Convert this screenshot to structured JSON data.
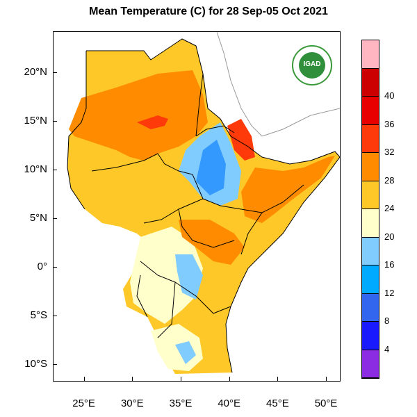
{
  "title": "Mean Temperature (C) for 28 Sep-05 Oct 2021",
  "logo": {
    "text": "IGAD",
    "icon": "igad-logo-icon"
  },
  "map": {
    "lat_ticks": [
      {
        "value": 20,
        "label": "20°N"
      },
      {
        "value": 15,
        "label": "15°N"
      },
      {
        "value": 10,
        "label": "10°N"
      },
      {
        "value": 5,
        "label": "5°N"
      },
      {
        "value": 0,
        "label": "0°"
      },
      {
        "value": -5,
        "label": "5°S"
      },
      {
        "value": -10,
        "label": "10°S"
      }
    ],
    "lon_ticks": [
      {
        "value": 25,
        "label": "25°E"
      },
      {
        "value": 30,
        "label": "30°E"
      },
      {
        "value": 35,
        "label": "35°E"
      },
      {
        "value": 40,
        "label": "40°E"
      },
      {
        "value": 45,
        "label": "45°E"
      },
      {
        "value": 50,
        "label": "50°E"
      }
    ],
    "lon_range": [
      21.8,
      51.5
    ],
    "lat_range": [
      -11.8,
      24.2
    ]
  },
  "colorbar": {
    "levels": [
      {
        "label": "",
        "color": "#ffb6c1"
      },
      {
        "label": "40",
        "color": "#cc0000"
      },
      {
        "label": "36",
        "color": "#e80000"
      },
      {
        "label": "32",
        "color": "#ff3a0a"
      },
      {
        "label": "28",
        "color": "#ff8c00"
      },
      {
        "label": "24",
        "color": "#ffc829"
      },
      {
        "label": "20",
        "color": "#ffffcc"
      },
      {
        "label": "16",
        "color": "#80ccff"
      },
      {
        "label": "12",
        "color": "#00aaff"
      },
      {
        "label": "8",
        "color": "#3366ee"
      },
      {
        "label": "4",
        "color": "#1a1aff"
      },
      {
        "label": "",
        "color": "#8b2be2"
      }
    ]
  },
  "colors": {
    "hot": "#ff8c00",
    "warm": "#ffc829",
    "mild": "#ffffcc",
    "cool": "#80ccff",
    "cold": "#3399ff",
    "veryhot": "#ff3a0a"
  }
}
